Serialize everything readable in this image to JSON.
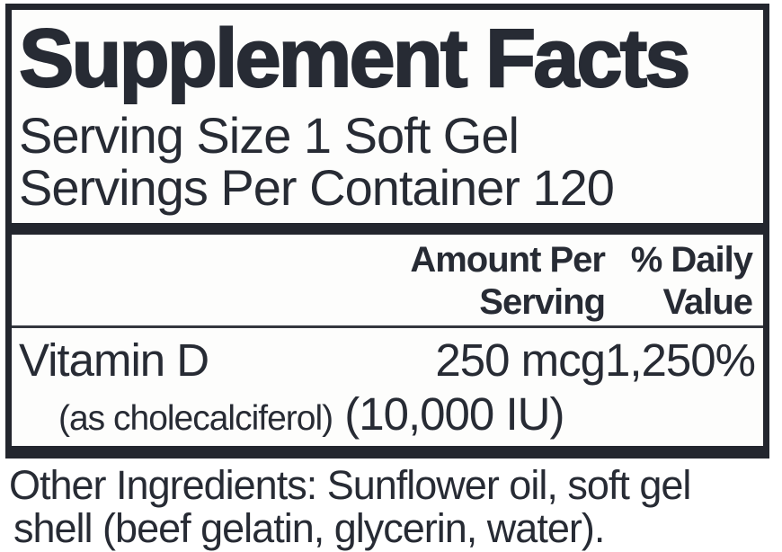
{
  "panel": {
    "title": "Supplement Facts",
    "serving_size": "Serving Size 1 Soft Gel",
    "servings_per_container": "Servings Per Container 120",
    "columns": {
      "amount": {
        "line1": "Amount Per",
        "line2": "Serving"
      },
      "daily": {
        "line1": "% Daily",
        "line2": "Value"
      }
    },
    "rows": [
      {
        "name": "Vitamin D",
        "amount": "250 mcg",
        "daily_value": "1,250%",
        "detail_small": "(as cholecalciferol)",
        "detail_large": "(10,000 IU)"
      }
    ]
  },
  "footer": {
    "line1": "Other Ingredients: Sunflower oil, soft gel",
    "line2": "shell (beef gelatin, glycerin, water)."
  },
  "colors": {
    "ink": "#272b34",
    "rule": "#23262e",
    "panel_background": "#fdfdfc",
    "page_background": "#ffffff"
  }
}
